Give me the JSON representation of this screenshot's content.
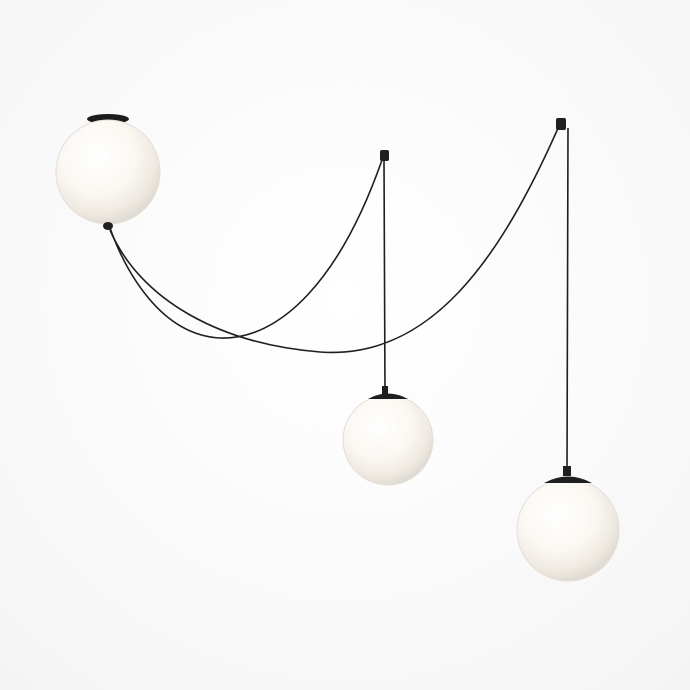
{
  "image": {
    "subject": "pendant-lamp-with-three-globe-shades",
    "colors": {
      "background": "#ffffff",
      "cord": "#1e1e1e",
      "fixture_hardware": "#202020",
      "globe_light": "#fffdf7",
      "globe_shadow": "#e7e2da"
    }
  }
}
